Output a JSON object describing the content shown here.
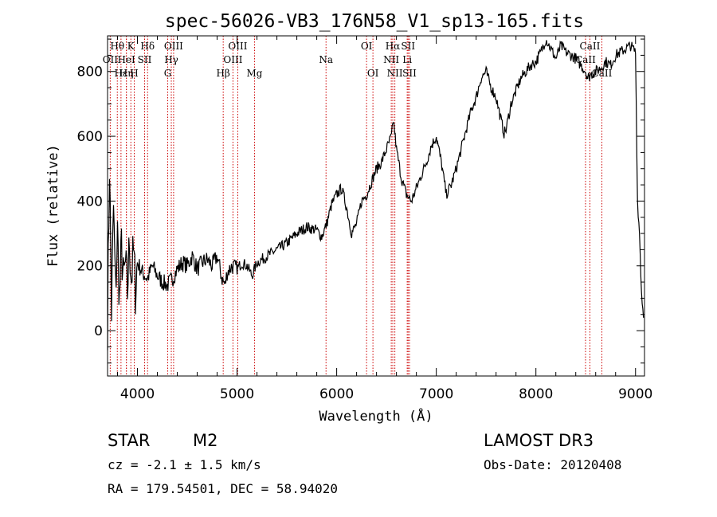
{
  "chart_data": {
    "type": "line",
    "title": "spec-56026-VB3_176N58_V1_sp13-165.fits",
    "xlabel": "Wavelength (Å)",
    "ylabel": "Flux (relative)",
    "xlim": [
      3700,
      9090
    ],
    "ylim": [
      -140,
      910
    ],
    "x_ticks": [
      4000,
      5000,
      6000,
      7000,
      8000,
      9000
    ],
    "y_ticks": [
      0,
      200,
      400,
      600,
      800
    ],
    "series": [
      {
        "name": "flux",
        "x": [
          3700,
          3720,
          3740,
          3760,
          3780,
          3800,
          3820,
          3840,
          3860,
          3880,
          3900,
          3920,
          3940,
          3960,
          3980,
          4000,
          4050,
          4100,
          4150,
          4200,
          4250,
          4300,
          4350,
          4400,
          4450,
          4500,
          4550,
          4600,
          4650,
          4700,
          4750,
          4800,
          4850,
          4880,
          4900,
          4950,
          5000,
          5050,
          5100,
          5150,
          5200,
          5250,
          5300,
          5400,
          5500,
          5600,
          5700,
          5800,
          5850,
          5900,
          5950,
          6000,
          6050,
          6100,
          6150,
          6200,
          6250,
          6300,
          6350,
          6400,
          6450,
          6500,
          6550,
          6570,
          6600,
          6650,
          6700,
          6750,
          6800,
          6850,
          6900,
          6950,
          7000,
          7050,
          7100,
          7150,
          7200,
          7250,
          7300,
          7350,
          7400,
          7450,
          7500,
          7550,
          7600,
          7650,
          7680,
          7700,
          7750,
          7800,
          7850,
          7900,
          7950,
          8000,
          8050,
          8100,
          8150,
          8200,
          8250,
          8300,
          8350,
          8400,
          8450,
          8500,
          8520,
          8550,
          8600,
          8650,
          8700,
          8750,
          8800,
          8850,
          8900,
          8950,
          9000,
          9020,
          9040,
          9060,
          9080
        ],
        "y": [
          30,
          520,
          60,
          380,
          120,
          300,
          90,
          260,
          150,
          200,
          120,
          280,
          160,
          240,
          130,
          210,
          180,
          160,
          200,
          170,
          150,
          140,
          160,
          190,
          210,
          200,
          230,
          190,
          210,
          220,
          200,
          230,
          160,
          140,
          180,
          200,
          190,
          210,
          200,
          170,
          210,
          220,
          230,
          250,
          270,
          300,
          320,
          310,
          290,
          330,
          390,
          420,
          440,
          380,
          300,
          330,
          400,
          420,
          460,
          500,
          520,
          560,
          600,
          650,
          560,
          470,
          420,
          400,
          440,
          480,
          520,
          570,
          600,
          520,
          420,
          450,
          500,
          560,
          620,
          680,
          720,
          780,
          800,
          750,
          720,
          650,
          610,
          620,
          700,
          740,
          780,
          800,
          820,
          830,
          860,
          900,
          870,
          840,
          880,
          860,
          850,
          840,
          820,
          800,
          780,
          790,
          800,
          810,
          830,
          820,
          850,
          860,
          870,
          880,
          860,
          400,
          300,
          120,
          40
        ]
      }
    ],
    "emission_lines": [
      {
        "label": "Hθ",
        "row": 0,
        "x": 3798
      },
      {
        "label": "K",
        "row": 0,
        "x": 3934
      },
      {
        "label": "Hδ",
        "row": 0,
        "x": 4102
      },
      {
        "label": "OIII",
        "row": 0,
        "x": 4363
      },
      {
        "label": "OIII",
        "row": 0,
        "x": 5007
      },
      {
        "label": "OI",
        "row": 0,
        "x": 6300
      },
      {
        "label": "Hα",
        "row": 0,
        "x": 6563
      },
      {
        "label": "SII",
        "row": 0,
        "x": 6717
      },
      {
        "label": "CaII",
        "row": 0,
        "x": 8542
      },
      {
        "label": "OII",
        "row": 1,
        "x": 3727
      },
      {
        "label": "HeI",
        "row": 1,
        "x": 3889
      },
      {
        "label": "SII",
        "row": 1,
        "x": 4072
      },
      {
        "label": "Hγ",
        "row": 1,
        "x": 4340
      },
      {
        "label": "OIII",
        "row": 1,
        "x": 4959
      },
      {
        "label": "Na",
        "row": 1,
        "x": 5893
      },
      {
        "label": "NII",
        "row": 1,
        "x": 6548
      },
      {
        "label": "Li",
        "row": 1,
        "x": 6708
      },
      {
        "label": "CaII",
        "row": 1,
        "x": 8498
      },
      {
        "label": "Hε",
        "row": 2,
        "x": 3835
      },
      {
        "label": "Hη",
        "row": 2,
        "x": 3889
      },
      {
        "label": "H",
        "row": 2,
        "x": 3968
      },
      {
        "label": "G",
        "row": 2,
        "x": 4304
      },
      {
        "label": "Hβ",
        "row": 2,
        "x": 4861
      },
      {
        "label": "Mg",
        "row": 2,
        "x": 5175
      },
      {
        "label": "OI",
        "row": 2,
        "x": 6364
      },
      {
        "label": "NII",
        "row": 2,
        "x": 6584
      },
      {
        "label": "SII",
        "row": 2,
        "x": 6731
      },
      {
        "label": "CaII",
        "row": 2,
        "x": 8662
      }
    ],
    "line_color": "#000000",
    "marker_color": "#cc0000"
  },
  "info": {
    "class": "STAR",
    "subclass": "M2",
    "survey": "LAMOST DR3",
    "cz": "cz = -2.1 ± 1.5 km/s",
    "obs_date": "Obs-Date: 20120408",
    "coords": "RA = 179.54501, DEC =  58.94020"
  }
}
